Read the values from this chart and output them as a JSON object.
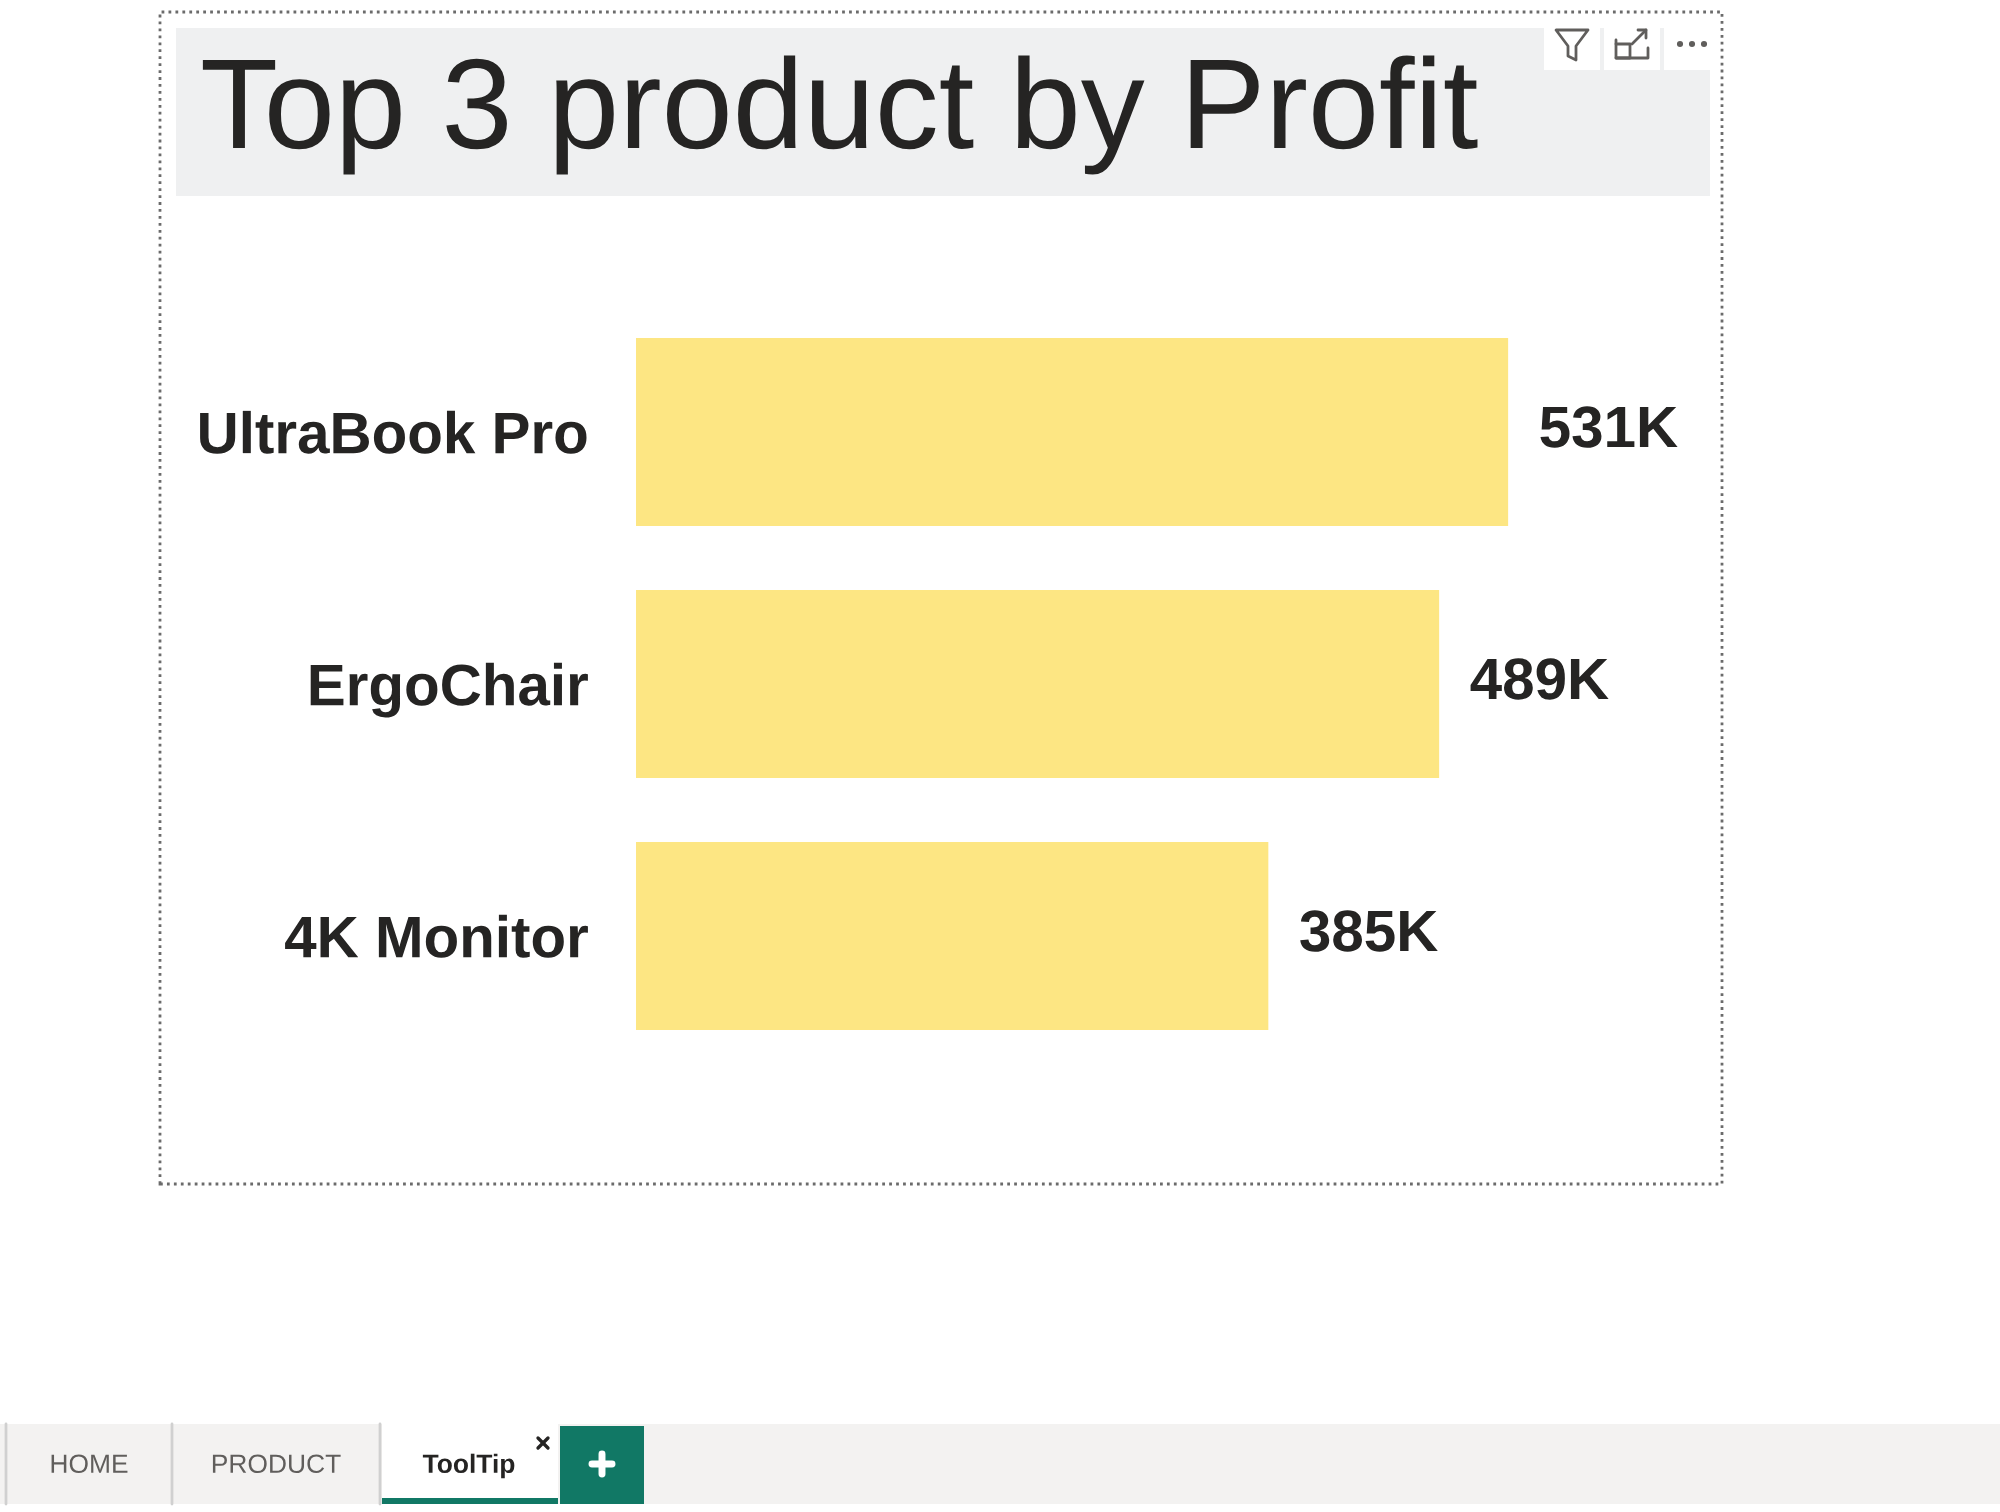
{
  "chart_data": {
    "type": "bar",
    "orientation": "horizontal",
    "title": "Top 3 product by Profit",
    "categories": [
      "UltraBook Pro",
      "ErgoChair",
      "4K Monitor"
    ],
    "values": [
      531000,
      489000,
      385000
    ],
    "value_labels": [
      "531K",
      "489K",
      "385K"
    ],
    "color": "#fde683",
    "tick_labels": "y",
    "annotations": [
      "HOME",
      "PRODUCT",
      "ToolTip"
    ]
  }
}
